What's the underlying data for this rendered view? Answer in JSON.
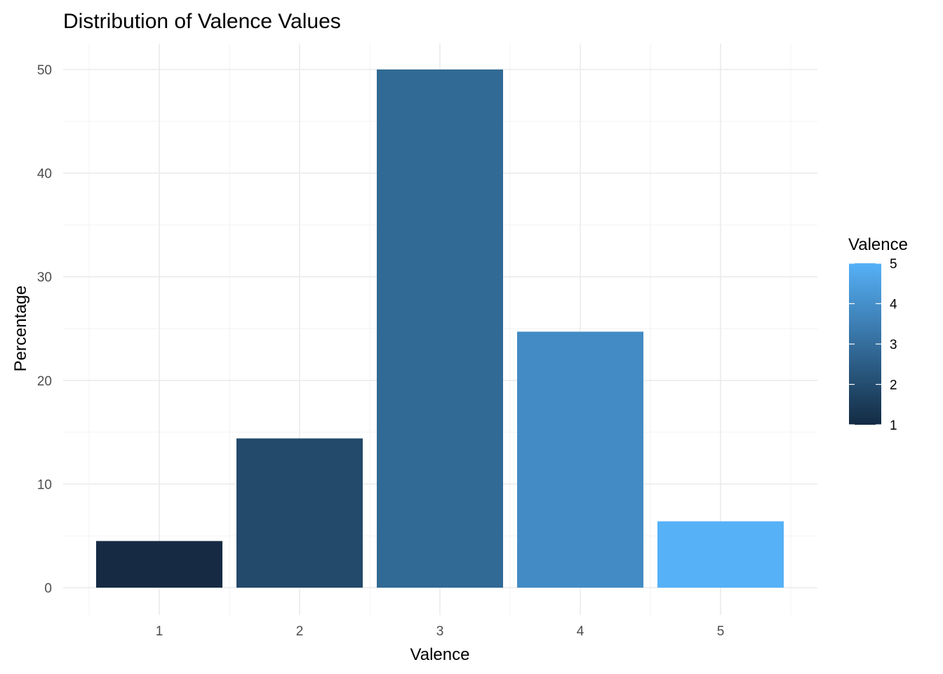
{
  "chart_data": {
    "type": "bar",
    "title": "Distribution of Valence Values",
    "xlabel": "Valence",
    "ylabel": "Percentage",
    "categories": [
      "1",
      "2",
      "3",
      "4",
      "5"
    ],
    "values": [
      4.5,
      14.4,
      50.0,
      24.7,
      6.4
    ],
    "colors": [
      "#162b43",
      "#23496b",
      "#316a95",
      "#438bc4",
      "#56b1f7"
    ],
    "ylim": [
      0,
      52.5
    ],
    "yticks": [
      "0",
      "10",
      "20",
      "30",
      "40",
      "50"
    ],
    "grid": true,
    "legend": {
      "title": "Valence",
      "placement": "right",
      "labels": [
        "5",
        "4",
        "3",
        "2",
        "1"
      ],
      "color_low": "#132b43",
      "color_high": "#56b1f7"
    }
  }
}
